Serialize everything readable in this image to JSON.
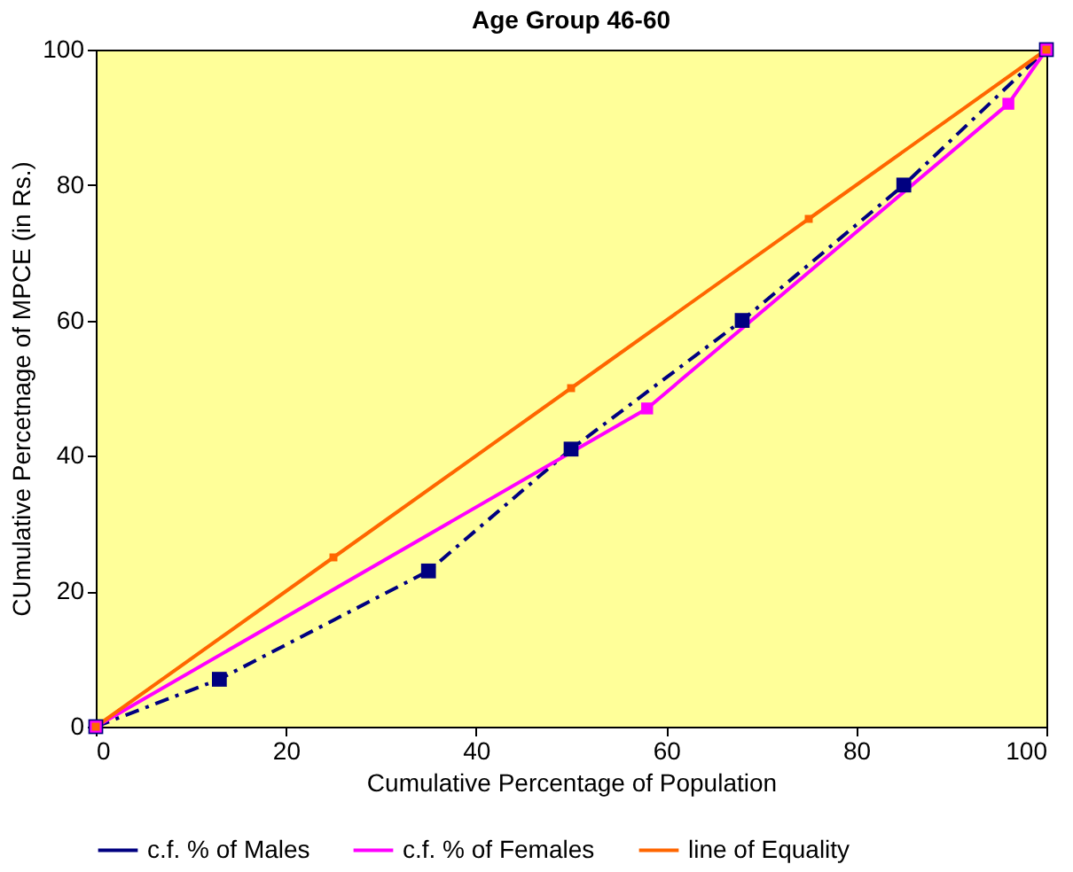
{
  "chart_data": {
    "type": "line",
    "title": "Age Group 46-60",
    "xlabel": "Cumulative Percentage of Population",
    "ylabel": "CUmulative Percetnage of MPCE (in Rs.)",
    "xlim": [
      0,
      100
    ],
    "xticks": [
      0,
      20,
      40,
      60,
      80,
      100
    ],
    "ylim": [
      0,
      100
    ],
    "yticks": [
      0,
      20,
      40,
      60,
      80,
      100
    ],
    "grid": false,
    "legend": "bottom",
    "marker": "square",
    "series": [
      {
        "name": "c.f. % of Males",
        "color": "#000080",
        "line_style": "dashdot",
        "x": [
          0,
          13,
          35,
          50,
          68,
          85,
          100
        ],
        "values": [
          0,
          7,
          23,
          41,
          60,
          80,
          100
        ]
      },
      {
        "name": "c.f. % of Females",
        "color": "#ff00ff",
        "line_style": "solid",
        "x": [
          0,
          58,
          96,
          100
        ],
        "values": [
          0,
          47,
          92,
          100
        ]
      },
      {
        "name": "line of Equality",
        "color": "#ff6600",
        "line_style": "solid",
        "x": [
          0,
          25,
          50,
          75,
          100
        ],
        "values": [
          0,
          25,
          50,
          75,
          100
        ]
      }
    ]
  }
}
